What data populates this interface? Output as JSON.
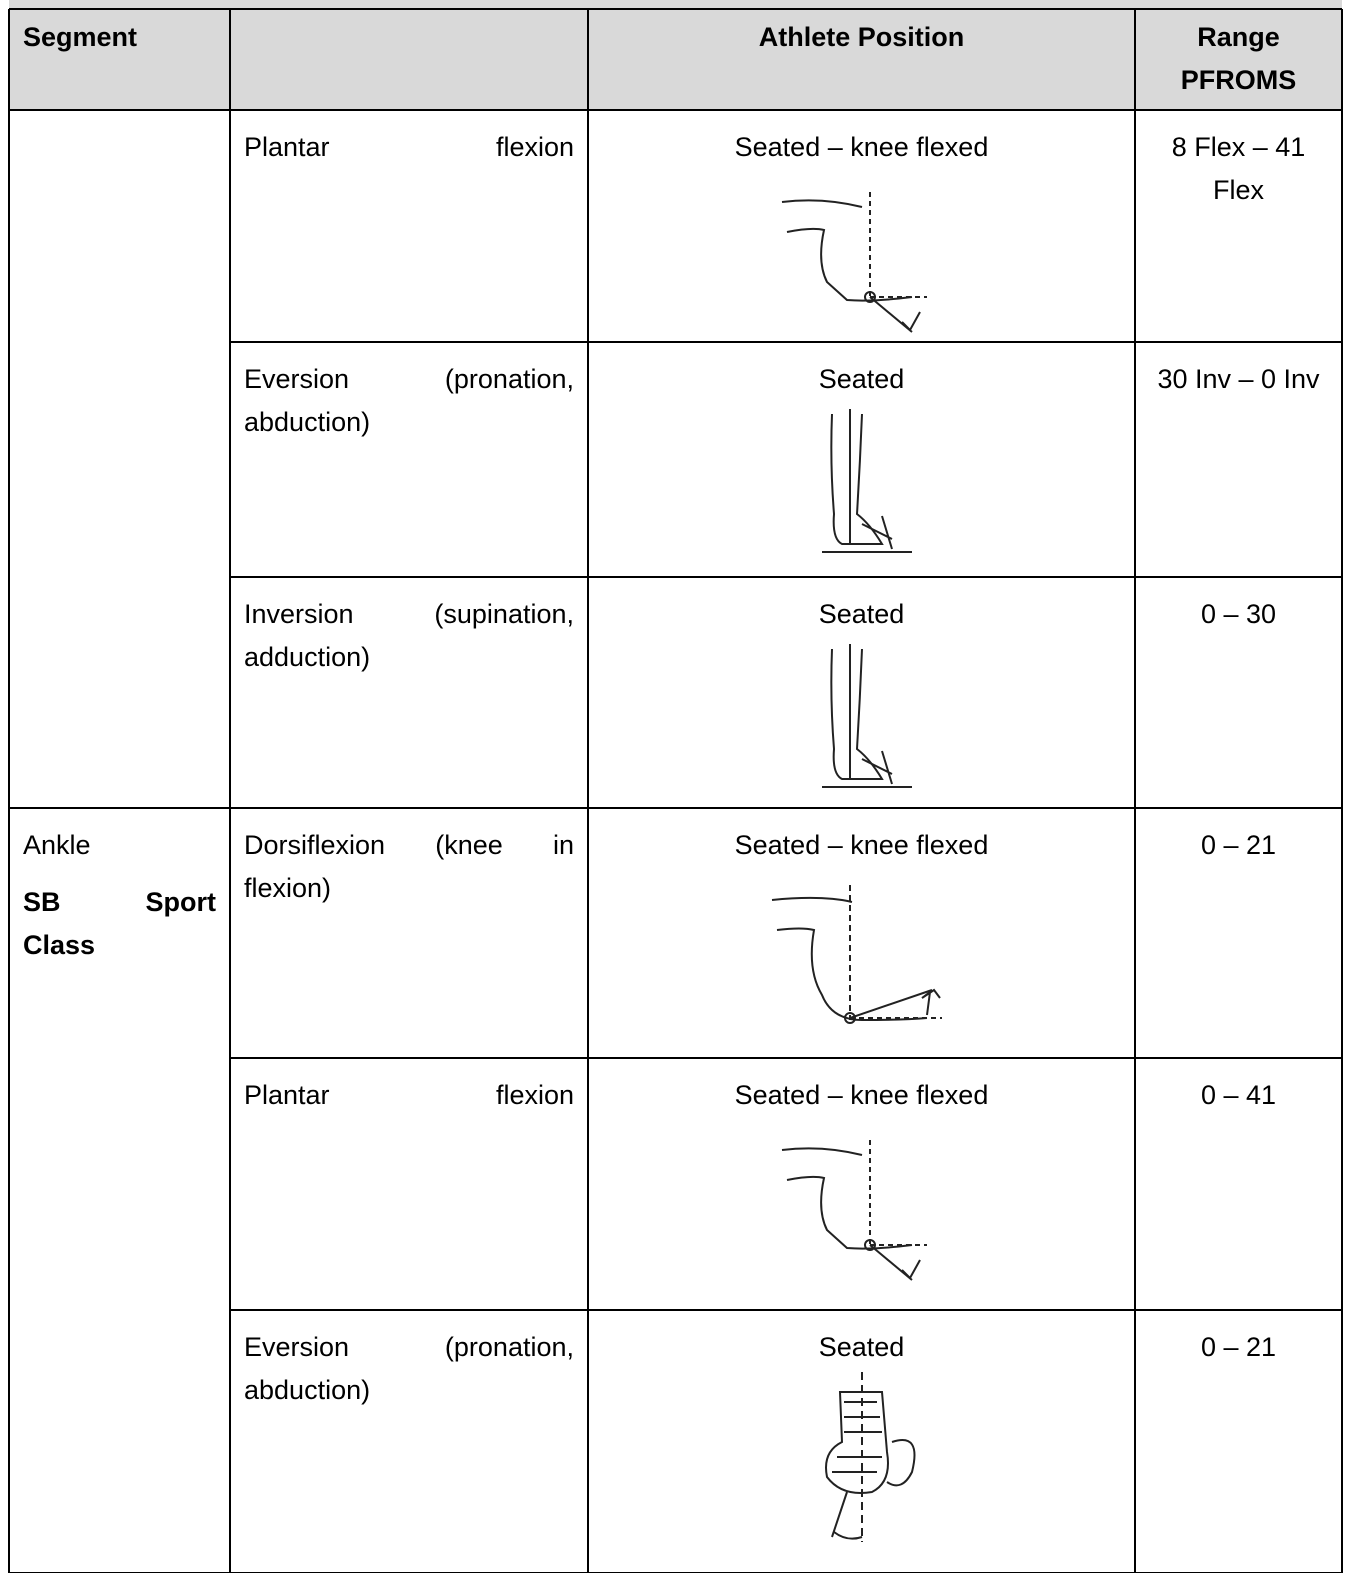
{
  "table": {
    "header": {
      "segment": "Segment",
      "position": "Athlete Position",
      "range": [
        "Range",
        "PFROMS"
      ]
    },
    "groups": [
      {
        "rows": [
          {
            "movement": "Plantar flexion",
            "position": "Seated – knee flexed",
            "range": "8 Flex – 41 Flex"
          },
          {
            "movement": "Eversion (pronation, abduction)",
            "position": "Seated",
            "range": "30 Inv – 0 Inv"
          },
          {
            "movement": "Inversion (supination, adduction)",
            "position": "Seated",
            "range": "0 – 30"
          }
        ]
      },
      {
        "segment": {
          "name": "Ankle",
          "sport_class": "SB Sport Class"
        },
        "rows": [
          {
            "movement": "Dorsiflexion (knee in flexion)",
            "position": "Seated – knee flexed",
            "range": "0 – 21"
          },
          {
            "movement": "Plantar flexion",
            "position": "Seated – knee flexed",
            "range": "0 – 41"
          },
          {
            "movement": "Eversion (pronation, abduction)",
            "position": "Seated",
            "range": "0 – 21"
          }
        ]
      }
    ]
  }
}
